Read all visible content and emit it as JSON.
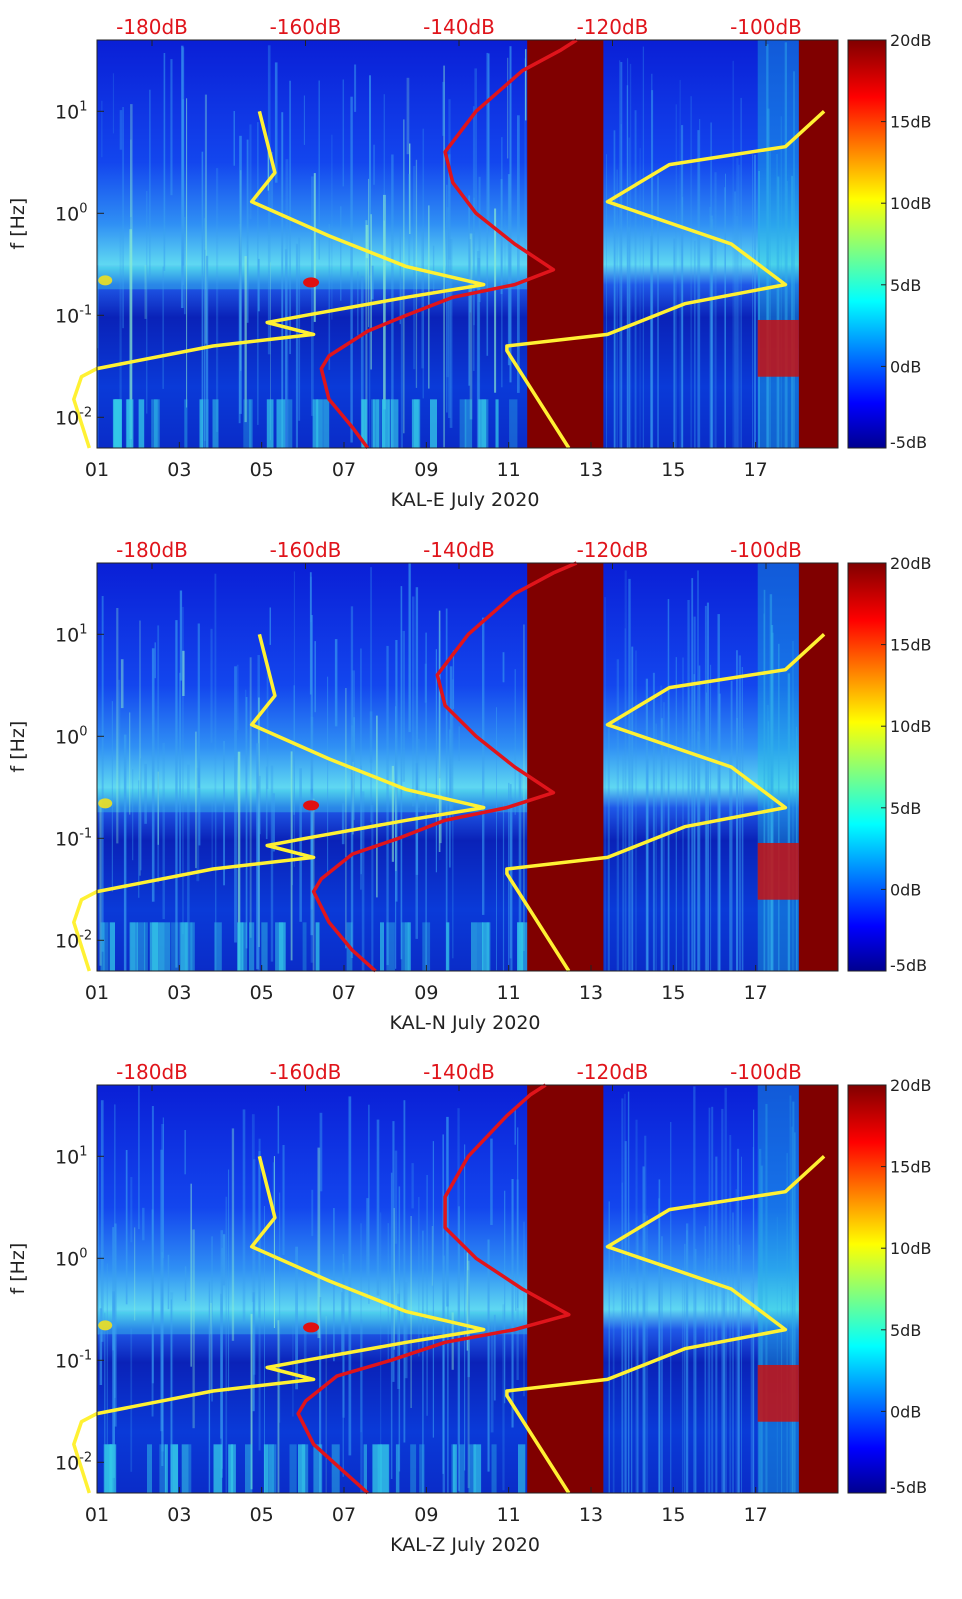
{
  "colors": {
    "red": "#e0141b",
    "yellow": "#fff133",
    "grid": "#222222",
    "gap": "#800000"
  },
  "chart_data": [
    {
      "type": "heatmap",
      "xlabel": "KAL-E July 2020",
      "ylabel": "f [Hz]",
      "xticks": [
        "01",
        "03",
        "05",
        "07",
        "09",
        "11",
        "13",
        "15",
        "17"
      ],
      "yticks": [
        "10-2",
        "10-1",
        "100",
        "101"
      ],
      "top_ticks": [
        "-180dB",
        "-160dB",
        "-140dB",
        "-120dB",
        "-100dB"
      ],
      "colorbar": {
        "ticks": [
          "20dB",
          "15dB",
          "10dB",
          "5dB",
          "0dB",
          "-5dB"
        ],
        "range": [
          -5,
          20
        ]
      },
      "xlim": [
        1,
        19
      ],
      "ylim_hz": [
        0.005,
        50
      ],
      "data_gaps_days": [
        [
          11.45,
          13.3
        ],
        [
          18.05,
          19
        ]
      ],
      "series": [
        {
          "name": "red spectrum (top axis dB)",
          "color": "red",
          "points": [
            [
              -128,
              50
            ],
            [
              -130,
              40
            ],
            [
              -135,
              25
            ],
            [
              -141,
              10
            ],
            [
              -145,
              4
            ],
            [
              -144,
              2
            ],
            [
              -141,
              1
            ],
            [
              -136,
              0.5
            ],
            [
              -131,
              0.28
            ],
            [
              -136,
              0.2
            ],
            [
              -144,
              0.15
            ],
            [
              -150,
              0.1
            ],
            [
              -155,
              0.07
            ],
            [
              -160,
              0.04
            ],
            [
              -161,
              0.03
            ],
            [
              -160,
              0.015
            ],
            [
              -157,
              0.008
            ],
            [
              -155,
              0.005
            ]
          ]
        },
        {
          "name": "yellow model low",
          "color": "yellow",
          "points": [
            [
              -169,
              10
            ],
            [
              -167,
              2.5
            ],
            [
              -170,
              1.3
            ],
            [
              -160,
              0.6
            ],
            [
              -150,
              0.3
            ],
            [
              -140,
              0.2
            ],
            [
              -150,
              0.15
            ],
            [
              -163,
              0.1
            ],
            [
              -168,
              0.085
            ],
            [
              -162,
              0.065
            ],
            [
              -175,
              0.05
            ],
            [
              -190,
              0.03
            ],
            [
              -192,
              0.025
            ],
            [
              -193,
              0.015
            ],
            [
              -191,
              0.005
            ]
          ]
        },
        {
          "name": "yellow model high",
          "color": "yellow",
          "points": [
            [
              -96,
              10
            ],
            [
              -101,
              4.5
            ],
            [
              -116,
              3
            ],
            [
              -124,
              1.3
            ],
            [
              -108,
              0.5
            ],
            [
              -101,
              0.2
            ],
            [
              -114,
              0.13
            ],
            [
              -124,
              0.065
            ],
            [
              -137,
              0.05
            ],
            [
              -137,
              0.045
            ],
            [
              -129,
              0.005
            ]
          ]
        }
      ]
    },
    {
      "type": "heatmap",
      "xlabel": "KAL-N July 2020",
      "ylabel": "f [Hz]",
      "xticks": [
        "01",
        "03",
        "05",
        "07",
        "09",
        "11",
        "13",
        "15",
        "17"
      ],
      "yticks": [
        "10-2",
        "10-1",
        "100",
        "101"
      ],
      "top_ticks": [
        "-180dB",
        "-160dB",
        "-140dB",
        "-120dB",
        "-100dB"
      ],
      "colorbar": {
        "ticks": [
          "20dB",
          "15dB",
          "10dB",
          "5dB",
          "0dB",
          "-5dB"
        ],
        "range": [
          -5,
          20
        ]
      },
      "xlim": [
        1,
        19
      ],
      "ylim_hz": [
        0.005,
        50
      ],
      "data_gaps_days": [
        [
          11.45,
          13.3
        ],
        [
          18.05,
          19
        ]
      ],
      "series": [
        {
          "name": "red spectrum (top axis dB)",
          "color": "red",
          "points": [
            [
              -128,
              50
            ],
            [
              -131,
              40
            ],
            [
              -136,
              25
            ],
            [
              -142,
              10
            ],
            [
              -146,
              4
            ],
            [
              -145,
              2
            ],
            [
              -141,
              1
            ],
            [
              -136,
              0.5
            ],
            [
              -131,
              0.28
            ],
            [
              -137,
              0.2
            ],
            [
              -145,
              0.15
            ],
            [
              -151,
              0.1
            ],
            [
              -157,
              0.07
            ],
            [
              -161,
              0.04
            ],
            [
              -162,
              0.03
            ],
            [
              -160,
              0.015
            ],
            [
              -157,
              0.008
            ],
            [
              -154,
              0.005
            ]
          ]
        },
        {
          "name": "yellow model low",
          "color": "yellow",
          "points": [
            [
              -169,
              10
            ],
            [
              -167,
              2.5
            ],
            [
              -170,
              1.3
            ],
            [
              -160,
              0.6
            ],
            [
              -150,
              0.3
            ],
            [
              -140,
              0.2
            ],
            [
              -150,
              0.15
            ],
            [
              -163,
              0.1
            ],
            [
              -168,
              0.085
            ],
            [
              -162,
              0.065
            ],
            [
              -175,
              0.05
            ],
            [
              -190,
              0.03
            ],
            [
              -192,
              0.025
            ],
            [
              -193,
              0.015
            ],
            [
              -191,
              0.005
            ]
          ]
        },
        {
          "name": "yellow model high",
          "color": "yellow",
          "points": [
            [
              -96,
              10
            ],
            [
              -101,
              4.5
            ],
            [
              -116,
              3
            ],
            [
              -124,
              1.3
            ],
            [
              -108,
              0.5
            ],
            [
              -101,
              0.2
            ],
            [
              -114,
              0.13
            ],
            [
              -124,
              0.065
            ],
            [
              -137,
              0.05
            ],
            [
              -137,
              0.045
            ],
            [
              -129,
              0.005
            ]
          ]
        }
      ]
    },
    {
      "type": "heatmap",
      "xlabel": "KAL-Z July 2020",
      "ylabel": "f [Hz]",
      "xticks": [
        "01",
        "03",
        "05",
        "07",
        "09",
        "11",
        "13",
        "15",
        "17"
      ],
      "yticks": [
        "10-2",
        "10-1",
        "100",
        "101"
      ],
      "top_ticks": [
        "-180dB",
        "-160dB",
        "-140dB",
        "-120dB",
        "-100dB"
      ],
      "colorbar": {
        "ticks": [
          "20dB",
          "15dB",
          "10dB",
          "5dB",
          "0dB",
          "-5dB"
        ],
        "range": [
          -5,
          20
        ]
      },
      "xlim": [
        1,
        19
      ],
      "ylim_hz": [
        0.005,
        50
      ],
      "data_gaps_days": [
        [
          11.45,
          13.3
        ],
        [
          18.05,
          19
        ]
      ],
      "series": [
        {
          "name": "red spectrum (top axis dB)",
          "color": "red",
          "points": [
            [
              -132,
              50
            ],
            [
              -134,
              40
            ],
            [
              -137,
              25
            ],
            [
              -142,
              10
            ],
            [
              -145,
              4
            ],
            [
              -145,
              2
            ],
            [
              -141,
              1
            ],
            [
              -135,
              0.5
            ],
            [
              -129,
              0.28
            ],
            [
              -136,
              0.2
            ],
            [
              -145,
              0.15
            ],
            [
              -152,
              0.1
            ],
            [
              -159,
              0.07
            ],
            [
              -163,
              0.04
            ],
            [
              -164,
              0.03
            ],
            [
              -162,
              0.015
            ],
            [
              -158,
              0.008
            ],
            [
              -155,
              0.005
            ]
          ]
        },
        {
          "name": "yellow model low",
          "color": "yellow",
          "points": [
            [
              -169,
              10
            ],
            [
              -167,
              2.5
            ],
            [
              -170,
              1.3
            ],
            [
              -160,
              0.6
            ],
            [
              -150,
              0.3
            ],
            [
              -140,
              0.2
            ],
            [
              -150,
              0.15
            ],
            [
              -163,
              0.1
            ],
            [
              -168,
              0.085
            ],
            [
              -162,
              0.065
            ],
            [
              -175,
              0.05
            ],
            [
              -190,
              0.03
            ],
            [
              -192,
              0.025
            ],
            [
              -193,
              0.015
            ],
            [
              -191,
              0.005
            ]
          ]
        },
        {
          "name": "yellow model high",
          "color": "yellow",
          "points": [
            [
              -96,
              10
            ],
            [
              -101,
              4.5
            ],
            [
              -116,
              3
            ],
            [
              -124,
              1.3
            ],
            [
              -108,
              0.5
            ],
            [
              -101,
              0.2
            ],
            [
              -114,
              0.13
            ],
            [
              -124,
              0.065
            ],
            [
              -137,
              0.05
            ],
            [
              -137,
              0.045
            ],
            [
              -129,
              0.005
            ]
          ]
        }
      ]
    }
  ]
}
